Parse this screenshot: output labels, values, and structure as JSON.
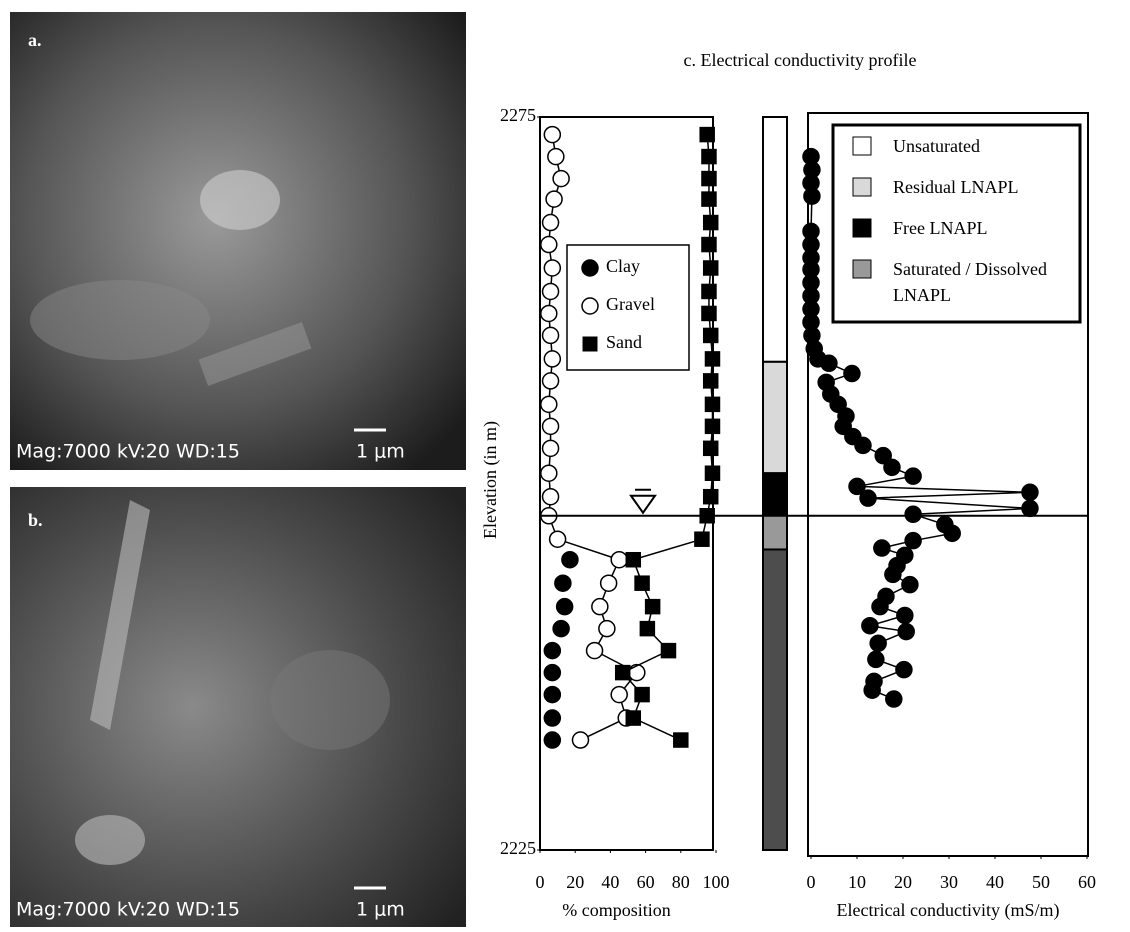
{
  "panels": [
    {
      "label": "a.",
      "caption": "Mag:7000  kV:20  WD:15",
      "scale": "1 μm"
    },
    {
      "label": "b.",
      "caption": "Mag:7000  kV:20  WD:15",
      "scale": "1 μm"
    }
  ],
  "title": "c. Electrical conductivity profile",
  "chart_data": [
    {
      "type": "profile",
      "ylabel": "Elevation (in m)",
      "xlabel": "% composition",
      "ylim": [
        2225,
        2275
      ],
      "yticks": [
        2225,
        2275
      ],
      "xlim": [
        0,
        100
      ],
      "xticks": [
        0,
        20,
        40,
        60,
        80,
        100
      ],
      "water_table": 2247.8,
      "elevations": [
        2273.8,
        2272.3,
        2270.8,
        2269.4,
        2267.8,
        2266.3,
        2264.7,
        2263.1,
        2261.6,
        2260.1,
        2258.5,
        2257.0,
        2255.4,
        2253.9,
        2252.4,
        2250.7,
        2249.1,
        2247.8,
        2246.2,
        2244.8,
        2243.2,
        2241.6,
        2240.1,
        2238.6,
        2237.1,
        2235.6,
        2234.0,
        2232.5
      ],
      "series": [
        {
          "name": "Clay",
          "marker": "circle",
          "color": "#000000",
          "fill": "#000000",
          "line": false,
          "values": [
            null,
            null,
            null,
            null,
            null,
            null,
            null,
            null,
            null,
            null,
            null,
            null,
            null,
            null,
            null,
            null,
            null,
            null,
            null,
            17,
            13,
            14,
            12,
            7,
            7,
            7,
            7,
            7
          ]
        },
        {
          "name": "Gravel",
          "marker": "circle",
          "color": "#000000",
          "fill": "#ffffff",
          "line": true,
          "values": [
            7,
            9,
            12,
            8,
            6,
            5,
            7,
            6,
            5,
            6,
            7,
            6,
            5,
            6,
            6,
            5,
            6,
            5,
            10,
            45,
            39,
            34,
            38,
            31,
            55,
            45,
            49,
            23
          ]
        },
        {
          "name": "Sand",
          "marker": "square",
          "color": "#000000",
          "fill": "#000000",
          "line": true,
          "values": [
            95,
            96,
            96,
            96,
            97,
            96,
            97,
            96,
            96,
            97,
            98,
            97,
            98,
            98,
            97,
            98,
            97,
            95,
            92,
            53,
            58,
            64,
            61,
            73,
            47,
            58,
            53,
            80
          ]
        }
      ]
    },
    {
      "type": "zones",
      "ylim": [
        2225,
        2275
      ],
      "zones": [
        {
          "from": 2275,
          "to": 2258.3,
          "color": "#ffffff",
          "name": "Unsaturated"
        },
        {
          "from": 2258.3,
          "to": 2250.7,
          "color": "#d9d9d9",
          "name": "Residual LNAPL"
        },
        {
          "from": 2250.7,
          "to": 2247.8,
          "color": "#000000",
          "name": "Free LNAPL"
        },
        {
          "from": 2247.8,
          "to": 2245.5,
          "color": "#999999",
          "name": "Saturated / Dissolved LNAPL"
        },
        {
          "from": 2245.5,
          "to": 2225,
          "color": "#4d4d4d"
        }
      ]
    },
    {
      "type": "profile",
      "xlabel": "Electrical conductivity (mS/m)",
      "ylim": [
        2225,
        2275
      ],
      "xlim": [
        0,
        60
      ],
      "xticks": [
        0,
        10,
        20,
        30,
        40,
        50,
        60
      ],
      "elevations": [
        2272.3,
        2271.4,
        2270.5,
        2269.6,
        2267.2,
        2266.3,
        2265.4,
        2264.6,
        2263.7,
        2262.8,
        2261.9,
        2261.0,
        2260.1,
        2259.2,
        2258.5,
        2258.2,
        2257.5,
        2256.9,
        2256.1,
        2255.4,
        2254.6,
        2253.9,
        2253.2,
        2252.6,
        2251.9,
        2251.1,
        2250.5,
        2249.8,
        2249.4,
        2249.0,
        2248.3,
        2247.9,
        2247.2,
        2246.6,
        2246.1,
        2245.6,
        2245.1,
        2244.4,
        2243.8,
        2243.1,
        2242.3,
        2241.6,
        2241.0,
        2240.3,
        2239.9,
        2239.1,
        2238.0,
        2237.3,
        2236.5,
        2235.9,
        2235.3
      ],
      "series": [
        {
          "marker": "circle",
          "color": "#000000",
          "fill": "#000000",
          "line": true,
          "values": [
            0,
            0.2,
            0,
            0.2,
            0,
            0,
            0,
            0,
            0,
            0,
            0,
            0,
            0.2,
            0.7,
            1.5,
            3.9,
            8.9,
            3.3,
            4.3,
            5.9,
            7.6,
            7.0,
            9.1,
            11.3,
            15.7,
            17.6,
            22.2,
            10.0,
            47.6,
            12.4,
            47.6,
            22.2,
            29.1,
            30.7,
            22.2,
            15.4,
            20.4,
            18.7,
            17.8,
            21.5,
            16.3,
            15.0,
            20.4,
            12.8,
            20.7,
            14.6,
            14.1,
            20.2,
            13.7,
            13.3,
            18.0
          ]
        }
      ]
    }
  ]
}
